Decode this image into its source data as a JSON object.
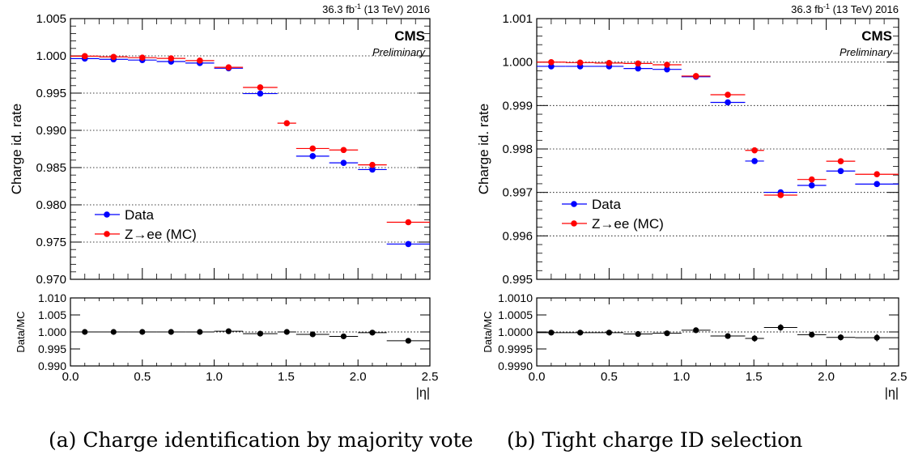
{
  "chart_data": [
    {
      "type": "scatter",
      "header": {
        "lumi": "36.3 fb",
        "lumi_sup": "-1",
        "energy": " (13 TeV) 2016"
      },
      "cms_label": "CMS",
      "cms_sublabel": "Preliminary",
      "ylabel": "Charge id. rate",
      "xlabel": "|η|",
      "ratio_ylabel": "Data/MC",
      "xlim": [
        0.0,
        2.5
      ],
      "ylim": [
        0.97,
        1.005
      ],
      "ratio_ylim": [
        0.99,
        1.01
      ],
      "xticks": [
        "0.0",
        "0.5",
        "1.0",
        "1.5",
        "2.0",
        "2.5"
      ],
      "yticks": [
        "0.970",
        "0.975",
        "0.980",
        "0.985",
        "0.990",
        "0.995",
        "1.000",
        "1.005"
      ],
      "ratio_yticks": [
        "0.990",
        "0.995",
        "1.000",
        "1.005",
        "1.010"
      ],
      "grid": true,
      "legend_position": "bottom-left",
      "bins": [
        [
          0.0,
          0.2
        ],
        [
          0.2,
          0.4
        ],
        [
          0.4,
          0.6
        ],
        [
          0.6,
          0.8
        ],
        [
          0.8,
          1.0
        ],
        [
          1.0,
          1.2
        ],
        [
          1.2,
          1.44
        ],
        [
          1.44,
          1.57
        ],
        [
          1.57,
          1.8
        ],
        [
          1.8,
          2.0
        ],
        [
          2.0,
          2.2
        ],
        [
          2.2,
          2.5
        ]
      ],
      "series": [
        {
          "name": "Data",
          "color": "#0000ff",
          "x": [
            0.1,
            0.3,
            0.5,
            0.7,
            0.9,
            1.1,
            1.32,
            1.505,
            1.685,
            1.9,
            2.1,
            2.35
          ],
          "values": [
            0.9998,
            0.9997,
            0.9996,
            0.9994,
            0.9992,
            0.9985,
            0.9951,
            null,
            0.9867,
            0.9858,
            0.9849,
            0.9749
          ]
        },
        {
          "name": "Z→ee (MC)",
          "color": "#ff0000",
          "x": [
            0.1,
            0.3,
            0.5,
            0.7,
            0.9,
            1.1,
            1.32,
            1.505,
            1.685,
            1.9,
            2.1,
            2.35
          ],
          "values": [
            0.9998,
            0.9997,
            0.9996,
            0.9995,
            0.9992,
            0.9983,
            0.9956,
            0.9908,
            0.9874,
            0.9872,
            0.9852,
            0.9775
          ]
        }
      ],
      "ratio": {
        "x": [
          0.1,
          0.3,
          0.5,
          0.7,
          0.9,
          1.1,
          1.32,
          1.505,
          1.685,
          1.9,
          2.1,
          2.35
        ],
        "values": [
          1.0,
          1.0,
          1.0,
          1.0,
          1.0,
          1.0002,
          0.9995,
          1.0,
          0.9993,
          0.9987,
          0.9998,
          0.9974
        ],
        "errors": [
          0.0001,
          0.0001,
          0.0001,
          0.0001,
          0.0001,
          0.0003,
          0.0004,
          0.0004,
          0.0005,
          0.0005,
          0.0004,
          0.0006
        ]
      }
    },
    {
      "type": "scatter",
      "header": {
        "lumi": "36.3 fb",
        "lumi_sup": "-1",
        "energy": " (13 TeV) 2016"
      },
      "cms_label": "CMS",
      "cms_sublabel": "Preliminary",
      "ylabel": "Charge id. rate",
      "xlabel": "|η|",
      "ratio_ylabel": "Data/MC",
      "xlim": [
        0.0,
        2.5
      ],
      "ylim": [
        0.995,
        1.001
      ],
      "ratio_ylim": [
        0.999,
        1.001
      ],
      "xticks": [
        "0.0",
        "0.5",
        "1.0",
        "1.5",
        "2.0",
        "2.5"
      ],
      "yticks": [
        "0.995",
        "0.996",
        "0.997",
        "0.998",
        "0.999",
        "1.000",
        "1.001"
      ],
      "ratio_yticks": [
        "0.9990",
        "0.9995",
        "1.0000",
        "1.0005",
        "1.0010"
      ],
      "grid": true,
      "legend_position": "middle-left",
      "bins": [
        [
          0.0,
          0.2
        ],
        [
          0.2,
          0.4
        ],
        [
          0.4,
          0.6
        ],
        [
          0.6,
          0.8
        ],
        [
          0.8,
          1.0
        ],
        [
          1.0,
          1.2
        ],
        [
          1.2,
          1.44
        ],
        [
          1.44,
          1.57
        ],
        [
          1.57,
          1.8
        ],
        [
          1.8,
          2.0
        ],
        [
          2.0,
          2.2
        ],
        [
          2.2,
          2.5
        ]
      ],
      "series": [
        {
          "name": "Data",
          "color": "#0000ff",
          "x": [
            0.1,
            0.3,
            0.5,
            0.7,
            0.9,
            1.1,
            1.32,
            1.505,
            1.685,
            1.9,
            2.1,
            2.35
          ],
          "values": [
            0.99993,
            0.99993,
            0.99993,
            0.99988,
            0.99986,
            0.99969,
            0.9991,
            0.99775,
            0.99703,
            0.99719,
            0.99752,
            0.99722
          ]
        },
        {
          "name": "Z→ee (MC)",
          "color": "#ff0000",
          "x": [
            0.1,
            0.3,
            0.5,
            0.7,
            0.9,
            1.1,
            1.32,
            1.505,
            1.685,
            1.9,
            2.1,
            2.35
          ],
          "values": [
            0.99997,
            0.99996,
            0.99995,
            0.99994,
            0.99991,
            0.99965,
            0.99922,
            0.99794,
            0.99691,
            0.99727,
            0.99769,
            0.99739
          ]
        }
      ],
      "ratio": {
        "x": [
          0.1,
          0.3,
          0.5,
          0.7,
          0.9,
          1.1,
          1.32,
          1.505,
          1.685,
          1.9,
          2.1,
          2.35
        ],
        "values": [
          0.99998,
          0.99998,
          0.99998,
          0.99994,
          0.99996,
          1.00005,
          0.99988,
          0.99981,
          1.00013,
          0.99992,
          0.99984,
          0.99983
        ],
        "errors": [
          3e-05,
          3e-05,
          3e-05,
          3e-05,
          3e-05,
          4e-05,
          5e-05,
          0.0001,
          0.0001,
          8e-05,
          9e-05,
          0.00011
        ]
      }
    }
  ],
  "captions": [
    "(a) Charge identification by majority vote",
    "(b) Tight charge ID selection"
  ]
}
